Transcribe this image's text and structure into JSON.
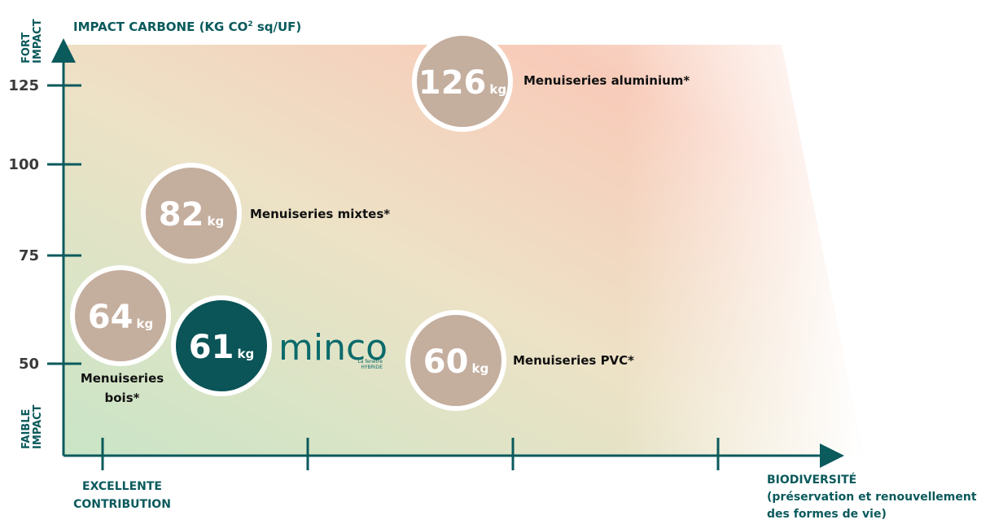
{
  "y_axis": {
    "title": {
      "before": "IMPACT CARBONE (KG CO",
      "sup": "2",
      "after": " sq/UF)"
    },
    "top_label": [
      "FORT",
      "IMPACT"
    ],
    "bottom_label": [
      "FAIBLE",
      "IMPACT"
    ],
    "ticks": [
      "125",
      "100",
      "75",
      "50"
    ]
  },
  "x_axis": {
    "left_label": [
      "EXCELLENTE",
      "CONTRIBUTION"
    ],
    "title": [
      "BIODIVERSITÉ",
      "(préservation et renouvellement",
      "des formes de vie)"
    ]
  },
  "unit": "kg",
  "bubbles": [
    {
      "value": "126",
      "label": [
        "Menuiseries aluminium*"
      ]
    },
    {
      "value": "82",
      "label": [
        "Menuiseries mixtes*"
      ]
    },
    {
      "value": "64",
      "label": [
        "Menuiseries",
        "bois*"
      ]
    },
    {
      "value": "61",
      "label": []
    },
    {
      "value": "60",
      "label": [
        "Menuiseries PVC*"
      ]
    }
  ],
  "logo": {
    "name": "minco",
    "tagline": [
      "La fenêtre",
      "HYBRIDE"
    ]
  }
}
